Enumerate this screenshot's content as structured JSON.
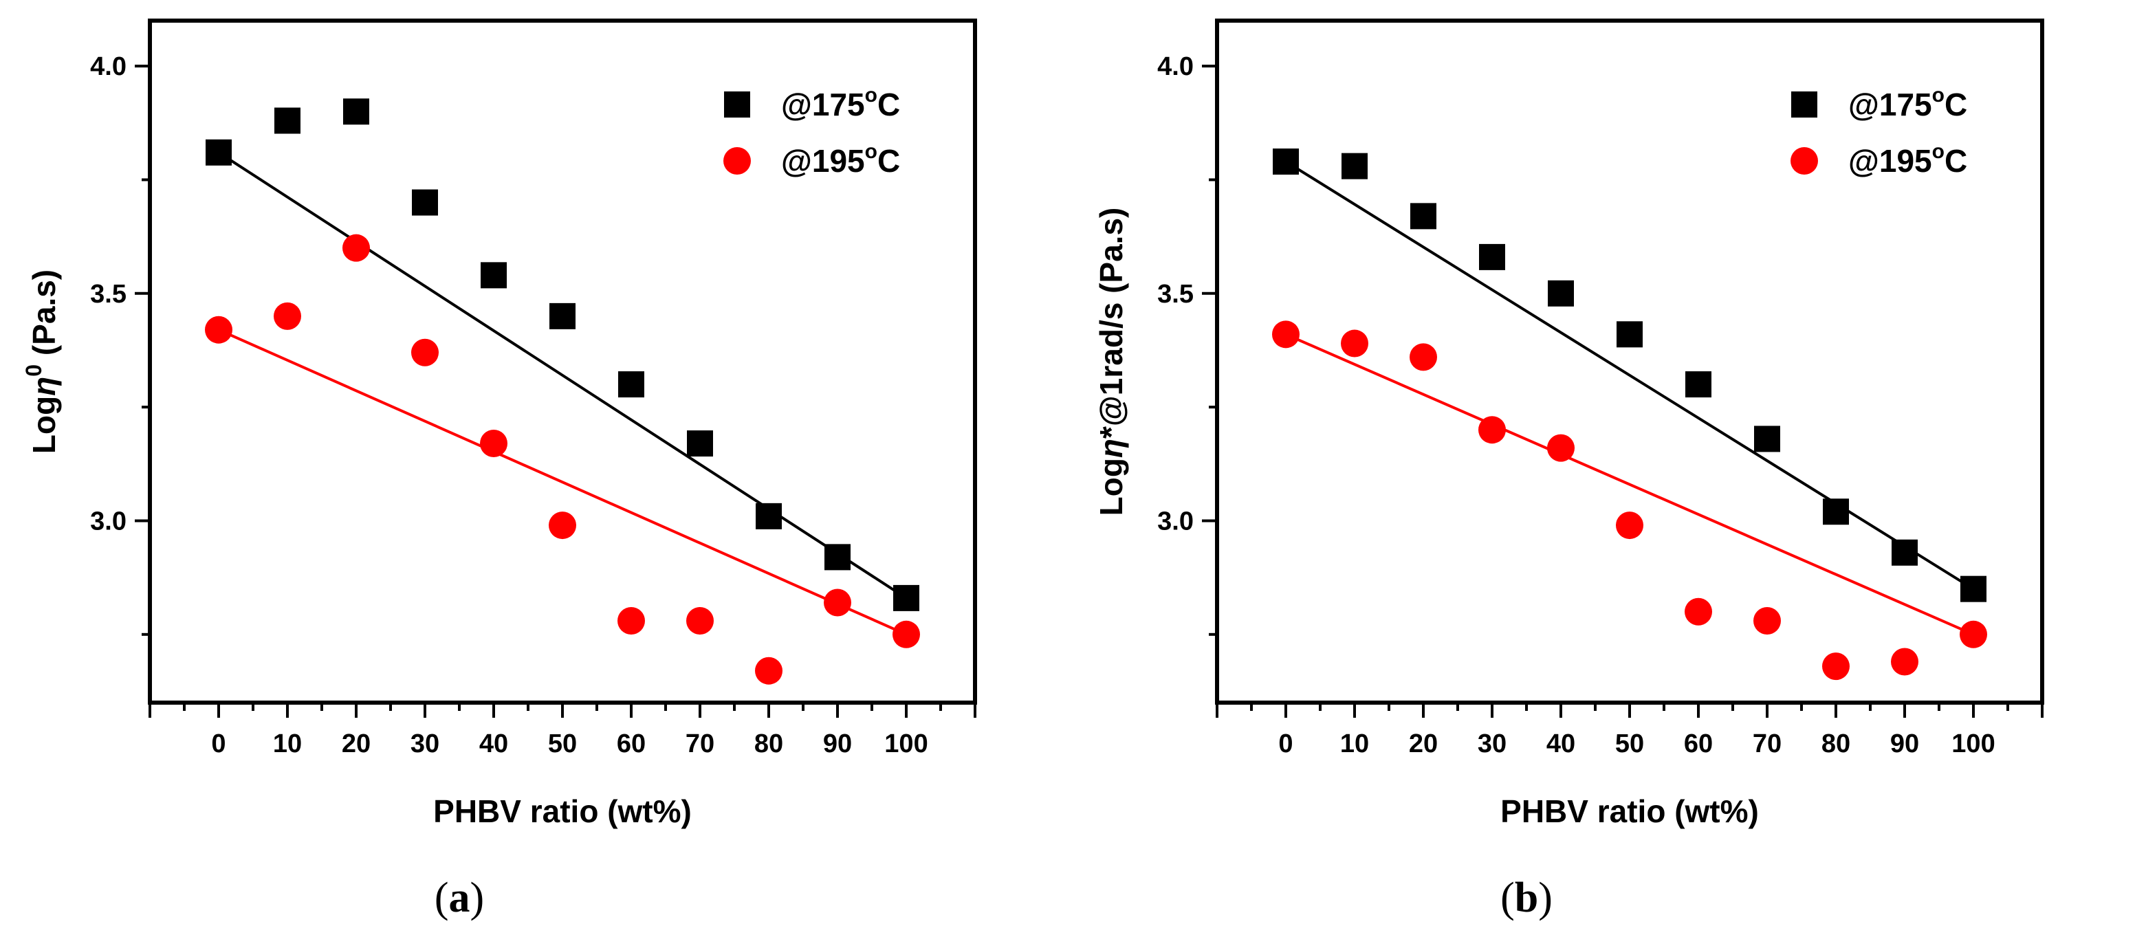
{
  "chart_data": [
    {
      "type": "scatter",
      "panel_label": "(a)",
      "panel_letter": "a",
      "xlabel": "PHBV ratio (wt%)",
      "ylabel_main": "Log",
      "ylabel_symbol": "η",
      "ylabel_sup": "0",
      "ylabel_tail": " (Pa.s)",
      "xlim": [
        -10,
        110
      ],
      "ylim": [
        2.6,
        4.1
      ],
      "xticks": [
        "0",
        "10",
        "20",
        "30",
        "40",
        "50",
        "60",
        "70",
        "80",
        "90",
        "100"
      ],
      "yticks": [
        "3.0",
        "3.5",
        "4.0"
      ],
      "legend_position": "top-right",
      "x": [
        0,
        10,
        20,
        30,
        40,
        50,
        60,
        70,
        80,
        90,
        100
      ],
      "series": [
        {
          "name": "@175ºC",
          "name_pre": "@175",
          "name_sup": "o",
          "name_post": "C",
          "marker": "square",
          "color": "#000000",
          "values": [
            3.81,
            3.88,
            3.9,
            3.7,
            3.54,
            3.45,
            3.3,
            3.17,
            3.01,
            2.92,
            2.83
          ],
          "fit": [
            3.81,
            2.83
          ]
        },
        {
          "name": "@195ºC",
          "name_pre": "@195",
          "name_sup": "o",
          "name_post": "C",
          "marker": "circle",
          "color": "#ff0000",
          "values": [
            3.42,
            3.45,
            3.6,
            3.37,
            3.17,
            2.99,
            2.78,
            2.78,
            2.67,
            2.82,
            2.75
          ],
          "fit": [
            3.42,
            2.75
          ]
        }
      ]
    },
    {
      "type": "scatter",
      "panel_label": "(b)",
      "panel_letter": "b",
      "xlabel": "PHBV ratio (wt%)",
      "ylabel_main": "Log",
      "ylabel_symbol": "η",
      "ylabel_sup": "",
      "ylabel_tail": "*@1rad/s (Pa.s)",
      "xlim": [
        -10,
        110
      ],
      "ylim": [
        2.6,
        4.1
      ],
      "xticks": [
        "0",
        "10",
        "20",
        "30",
        "40",
        "50",
        "60",
        "70",
        "80",
        "90",
        "100"
      ],
      "yticks": [
        "3.0",
        "3.5",
        "4.0"
      ],
      "legend_position": "top-right",
      "x": [
        0,
        10,
        20,
        30,
        40,
        50,
        60,
        70,
        80,
        90,
        100
      ],
      "series": [
        {
          "name": "@175ºC",
          "name_pre": "@175",
          "name_sup": "o",
          "name_post": "C",
          "marker": "square",
          "color": "#000000",
          "values": [
            3.79,
            3.78,
            3.67,
            3.58,
            3.5,
            3.41,
            3.3,
            3.18,
            3.02,
            2.93,
            2.85
          ],
          "fit": [
            3.79,
            2.85
          ]
        },
        {
          "name": "@195ºC",
          "name_pre": "@195",
          "name_sup": "o",
          "name_post": "C",
          "marker": "circle",
          "color": "#ff0000",
          "values": [
            3.41,
            3.39,
            3.36,
            3.2,
            3.16,
            2.99,
            2.8,
            2.78,
            2.68,
            2.69,
            2.75
          ],
          "fit": [
            3.41,
            2.75
          ]
        }
      ]
    }
  ]
}
